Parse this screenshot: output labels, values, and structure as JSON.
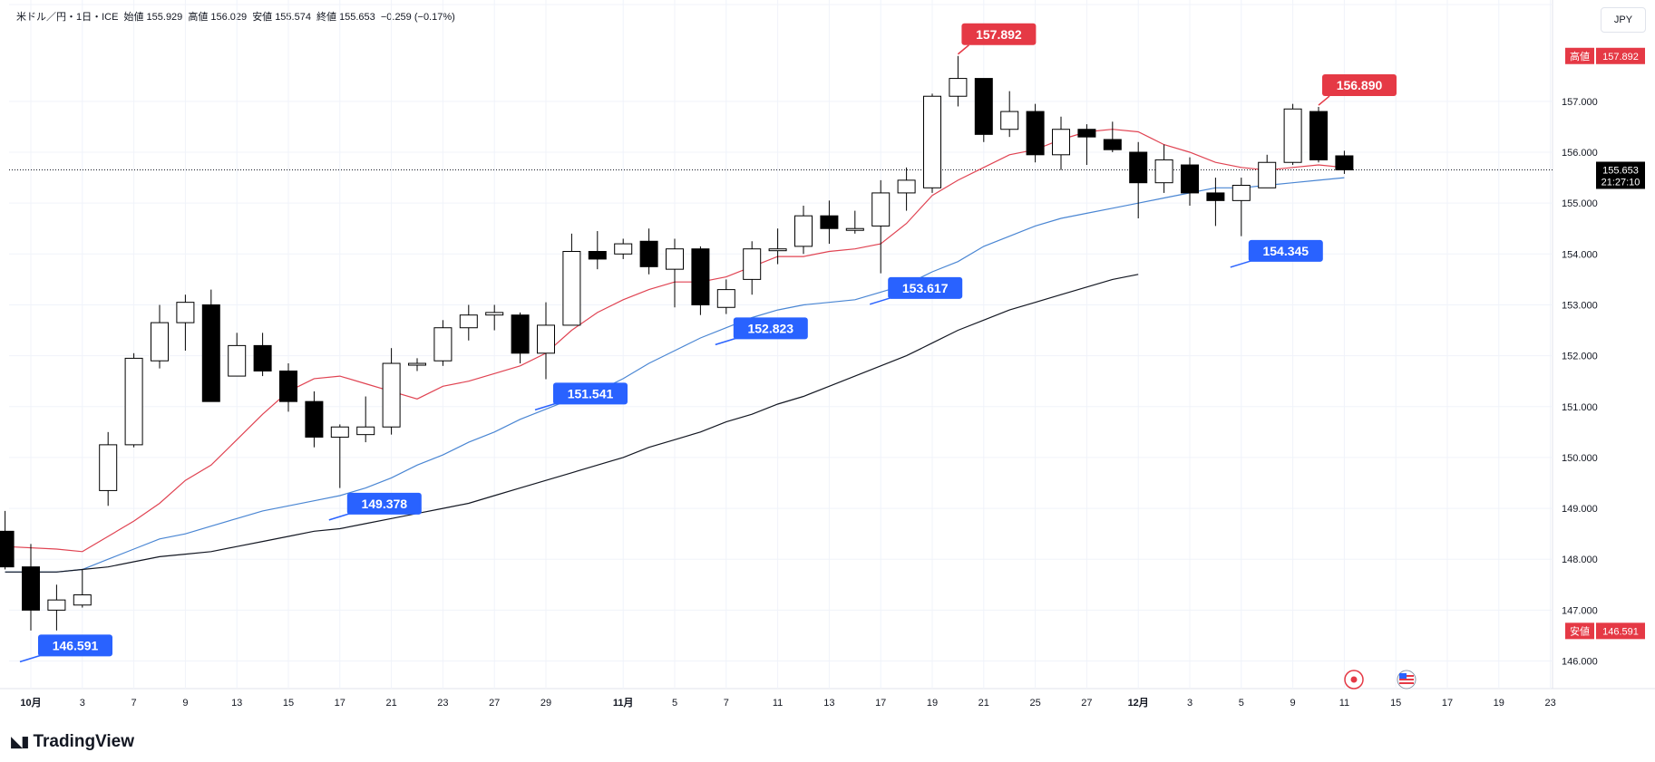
{
  "header": {
    "symbol": "米ドル／円・1日・ICE",
    "open_label": "始値",
    "open": "155.929",
    "high_label": "高値",
    "high": "156.029",
    "low_label": "安値",
    "low": "155.574",
    "close_label": "終値",
    "close": "155.653",
    "change": "−0.259 (−0.17%)"
  },
  "currency_button": "JPY",
  "brand": "TradingView",
  "colors": {
    "up_body": "#ffffff",
    "down_body": "#000000",
    "candle_outline": "#000000",
    "ma_short": "#e04352",
    "ma_mid": "#4a86d3",
    "ma_long": "#131722",
    "high_tag": "#e53945",
    "low_tag": "#2962ff",
    "price_tag": "#000000"
  },
  "chart_data": {
    "type": "candlestick",
    "y_axis": {
      "min": 145.6,
      "max": 158.6,
      "ticks": [
        "146.000",
        "147.000",
        "148.000",
        "149.000",
        "150.000",
        "151.000",
        "152.000",
        "153.000",
        "154.000",
        "155.000",
        "156.000",
        "157.000"
      ]
    },
    "x_axis": {
      "labels": [
        {
          "text": "10月",
          "slot": 0
        },
        {
          "text": "3",
          "slot": 2
        },
        {
          "text": "7",
          "slot": 4
        },
        {
          "text": "9",
          "slot": 6
        },
        {
          "text": "13",
          "slot": 8
        },
        {
          "text": "15",
          "slot": 10
        },
        {
          "text": "17",
          "slot": 12
        },
        {
          "text": "21",
          "slot": 14
        },
        {
          "text": "23",
          "slot": 16
        },
        {
          "text": "27",
          "slot": 18
        },
        {
          "text": "29",
          "slot": 20
        },
        {
          "text": "11月",
          "slot": 23
        },
        {
          "text": "5",
          "slot": 25
        },
        {
          "text": "7",
          "slot": 27
        },
        {
          "text": "11",
          "slot": 29
        },
        {
          "text": "13",
          "slot": 31
        },
        {
          "text": "17",
          "slot": 33
        },
        {
          "text": "19",
          "slot": 35
        },
        {
          "text": "21",
          "slot": 37
        },
        {
          "text": "25",
          "slot": 39
        },
        {
          "text": "27",
          "slot": 41
        },
        {
          "text": "12月",
          "slot": 43
        },
        {
          "text": "3",
          "slot": 45
        },
        {
          "text": "5",
          "slot": 47
        },
        {
          "text": "9",
          "slot": 49
        },
        {
          "text": "11",
          "slot": 51
        },
        {
          "text": "15",
          "slot": 53
        },
        {
          "text": "17",
          "slot": 55
        },
        {
          "text": "19",
          "slot": 57
        },
        {
          "text": "23",
          "slot": 59
        }
      ]
    },
    "candles": [
      {
        "slot": -1,
        "o": 148.55,
        "h": 148.95,
        "l": 147.8,
        "c": 147.85
      },
      {
        "slot": 0,
        "o": 147.85,
        "h": 148.3,
        "l": 146.6,
        "c": 147.0
      },
      {
        "slot": 1,
        "o": 147.0,
        "h": 147.5,
        "l": 146.6,
        "c": 147.2
      },
      {
        "slot": 2,
        "o": 147.1,
        "h": 147.8,
        "l": 147.05,
        "c": 147.3
      },
      {
        "slot": 3,
        "o": 149.35,
        "h": 150.5,
        "l": 149.05,
        "c": 150.25
      },
      {
        "slot": 4,
        "o": 150.25,
        "h": 152.05,
        "l": 150.2,
        "c": 151.95
      },
      {
        "slot": 5,
        "o": 151.9,
        "h": 153.0,
        "l": 151.75,
        "c": 152.65
      },
      {
        "slot": 6,
        "o": 152.65,
        "h": 153.2,
        "l": 152.1,
        "c": 153.05
      },
      {
        "slot": 7,
        "o": 153.0,
        "h": 153.3,
        "l": 151.1,
        "c": 151.1
      },
      {
        "slot": 8,
        "o": 151.6,
        "h": 152.45,
        "l": 151.6,
        "c": 152.2
      },
      {
        "slot": 9,
        "o": 152.2,
        "h": 152.45,
        "l": 151.6,
        "c": 151.7
      },
      {
        "slot": 10,
        "o": 151.7,
        "h": 151.85,
        "l": 150.9,
        "c": 151.1
      },
      {
        "slot": 11,
        "o": 151.1,
        "h": 151.3,
        "l": 150.2,
        "c": 150.4
      },
      {
        "slot": 12,
        "o": 150.4,
        "h": 150.65,
        "l": 149.4,
        "c": 150.6
      },
      {
        "slot": 13,
        "o": 150.45,
        "h": 151.2,
        "l": 150.3,
        "c": 150.6
      },
      {
        "slot": 14,
        "o": 150.6,
        "h": 152.15,
        "l": 150.45,
        "c": 151.85
      },
      {
        "slot": 15,
        "o": 151.85,
        "h": 151.95,
        "l": 151.7,
        "c": 151.85
      },
      {
        "slot": 16,
        "o": 151.9,
        "h": 152.7,
        "l": 151.8,
        "c": 152.55
      },
      {
        "slot": 17,
        "o": 152.55,
        "h": 153.0,
        "l": 152.3,
        "c": 152.8
      },
      {
        "slot": 18,
        "o": 152.8,
        "h": 153.0,
        "l": 152.5,
        "c": 152.85
      },
      {
        "slot": 19,
        "o": 152.8,
        "h": 152.85,
        "l": 151.85,
        "c": 152.05
      },
      {
        "slot": 20,
        "o": 152.05,
        "h": 153.05,
        "l": 151.54,
        "c": 152.6
      },
      {
        "slot": 21,
        "o": 152.6,
        "h": 154.4,
        "l": 152.6,
        "c": 154.05
      },
      {
        "slot": 22,
        "o": 154.05,
        "h": 154.45,
        "l": 153.7,
        "c": 153.9
      },
      {
        "slot": 23,
        "o": 154.0,
        "h": 154.3,
        "l": 153.9,
        "c": 154.2
      },
      {
        "slot": 24,
        "o": 154.25,
        "h": 154.5,
        "l": 153.6,
        "c": 153.75
      },
      {
        "slot": 25,
        "o": 153.7,
        "h": 154.3,
        "l": 152.95,
        "c": 154.1
      },
      {
        "slot": 26,
        "o": 154.1,
        "h": 154.15,
        "l": 152.8,
        "c": 153.0
      },
      {
        "slot": 27,
        "o": 152.95,
        "h": 153.5,
        "l": 152.82,
        "c": 153.3
      },
      {
        "slot": 28,
        "o": 153.5,
        "h": 154.25,
        "l": 153.2,
        "c": 154.1
      },
      {
        "slot": 29,
        "o": 154.1,
        "h": 154.5,
        "l": 153.8,
        "c": 154.1
      },
      {
        "slot": 30,
        "o": 154.15,
        "h": 154.95,
        "l": 154.0,
        "c": 154.75
      },
      {
        "slot": 31,
        "o": 154.75,
        "h": 155.05,
        "l": 154.2,
        "c": 154.5
      },
      {
        "slot": 32,
        "o": 154.5,
        "h": 154.85,
        "l": 154.4,
        "c": 154.5
      },
      {
        "slot": 33,
        "o": 154.55,
        "h": 155.45,
        "l": 153.62,
        "c": 155.2
      },
      {
        "slot": 34,
        "o": 155.2,
        "h": 155.7,
        "l": 154.85,
        "c": 155.45
      },
      {
        "slot": 35,
        "o": 155.3,
        "h": 157.15,
        "l": 155.2,
        "c": 157.1
      },
      {
        "slot": 36,
        "o": 157.1,
        "h": 157.892,
        "l": 156.9,
        "c": 157.45
      },
      {
        "slot": 37,
        "o": 157.45,
        "h": 157.45,
        "l": 156.2,
        "c": 156.35
      },
      {
        "slot": 38,
        "o": 156.45,
        "h": 157.2,
        "l": 156.3,
        "c": 156.8
      },
      {
        "slot": 39,
        "o": 156.8,
        "h": 156.95,
        "l": 155.8,
        "c": 155.95
      },
      {
        "slot": 40,
        "o": 155.95,
        "h": 156.7,
        "l": 155.65,
        "c": 156.45
      },
      {
        "slot": 41,
        "o": 156.45,
        "h": 156.55,
        "l": 155.75,
        "c": 156.3
      },
      {
        "slot": 42,
        "o": 156.25,
        "h": 156.6,
        "l": 156.0,
        "c": 156.05
      },
      {
        "slot": 43,
        "o": 156.0,
        "h": 156.2,
        "l": 154.7,
        "c": 155.4
      },
      {
        "slot": 44,
        "o": 155.4,
        "h": 156.15,
        "l": 155.2,
        "c": 155.85
      },
      {
        "slot": 45,
        "o": 155.75,
        "h": 155.9,
        "l": 154.95,
        "c": 155.2
      },
      {
        "slot": 46,
        "o": 155.2,
        "h": 155.5,
        "l": 154.55,
        "c": 155.05
      },
      {
        "slot": 47,
        "o": 155.05,
        "h": 155.5,
        "l": 154.35,
        "c": 155.35
      },
      {
        "slot": 48,
        "o": 155.3,
        "h": 155.95,
        "l": 155.3,
        "c": 155.8
      },
      {
        "slot": 49,
        "o": 155.8,
        "h": 156.95,
        "l": 155.75,
        "c": 156.85
      },
      {
        "slot": 50,
        "o": 156.8,
        "h": 156.89,
        "l": 155.8,
        "c": 155.85
      },
      {
        "slot": 51,
        "o": 155.929,
        "h": 156.029,
        "l": 155.574,
        "c": 155.653
      }
    ],
    "moving_averages": [
      {
        "color": "#e04352",
        "points": [
          [
            -1,
            148.25
          ],
          [
            1,
            148.2
          ],
          [
            2,
            148.15
          ],
          [
            3,
            148.45
          ],
          [
            4,
            148.75
          ],
          [
            5,
            149.1
          ],
          [
            6,
            149.55
          ],
          [
            7,
            149.85
          ],
          [
            8,
            150.35
          ],
          [
            9,
            150.85
          ],
          [
            10,
            151.3
          ],
          [
            11,
            151.55
          ],
          [
            12,
            151.6
          ],
          [
            13,
            151.45
          ],
          [
            14,
            151.3
          ],
          [
            15,
            151.15
          ],
          [
            16,
            151.4
          ],
          [
            17,
            151.5
          ],
          [
            18,
            151.65
          ],
          [
            19,
            151.8
          ],
          [
            20,
            152.05
          ],
          [
            21,
            152.5
          ],
          [
            22,
            152.85
          ],
          [
            23,
            153.1
          ],
          [
            24,
            153.3
          ],
          [
            25,
            153.45
          ],
          [
            26,
            153.45
          ],
          [
            27,
            153.55
          ],
          [
            28,
            153.75
          ],
          [
            29,
            153.95
          ],
          [
            30,
            153.95
          ],
          [
            31,
            154.05
          ],
          [
            32,
            154.1
          ],
          [
            33,
            154.2
          ],
          [
            34,
            154.6
          ],
          [
            35,
            155.15
          ],
          [
            36,
            155.45
          ],
          [
            37,
            155.7
          ],
          [
            38,
            155.95
          ],
          [
            39,
            156.05
          ],
          [
            40,
            156.25
          ],
          [
            41,
            156.4
          ],
          [
            42,
            156.45
          ],
          [
            43,
            156.4
          ],
          [
            44,
            156.15
          ],
          [
            45,
            156.0
          ],
          [
            46,
            155.8
          ],
          [
            47,
            155.7
          ],
          [
            48,
            155.65
          ],
          [
            49,
            155.7
          ],
          [
            50,
            155.75
          ],
          [
            51,
            155.7
          ]
        ]
      },
      {
        "color": "#4a86d3",
        "points": [
          [
            -1,
            147.75
          ],
          [
            1,
            147.75
          ],
          [
            2,
            147.8
          ],
          [
            3,
            148.0
          ],
          [
            4,
            148.2
          ],
          [
            5,
            148.4
          ],
          [
            6,
            148.5
          ],
          [
            7,
            148.65
          ],
          [
            8,
            148.8
          ],
          [
            9,
            148.95
          ],
          [
            10,
            149.05
          ],
          [
            11,
            149.15
          ],
          [
            12,
            149.25
          ],
          [
            13,
            149.4
          ],
          [
            14,
            149.6
          ],
          [
            15,
            149.85
          ],
          [
            16,
            150.05
          ],
          [
            17,
            150.3
          ],
          [
            18,
            150.5
          ],
          [
            19,
            150.75
          ],
          [
            20,
            150.95
          ],
          [
            21,
            151.15
          ],
          [
            22,
            151.3
          ],
          [
            23,
            151.55
          ],
          [
            24,
            151.85
          ],
          [
            25,
            152.1
          ],
          [
            26,
            152.35
          ],
          [
            27,
            152.55
          ],
          [
            28,
            152.75
          ],
          [
            29,
            152.9
          ],
          [
            30,
            153.0
          ],
          [
            31,
            153.05
          ],
          [
            32,
            153.1
          ],
          [
            33,
            153.25
          ],
          [
            34,
            153.4
          ],
          [
            35,
            153.65
          ],
          [
            36,
            153.85
          ],
          [
            37,
            154.15
          ],
          [
            38,
            154.35
          ],
          [
            39,
            154.55
          ],
          [
            40,
            154.7
          ],
          [
            41,
            154.8
          ],
          [
            42,
            154.9
          ],
          [
            43,
            155.0
          ],
          [
            44,
            155.1
          ],
          [
            45,
            155.2
          ],
          [
            46,
            155.3
          ],
          [
            47,
            155.3
          ],
          [
            48,
            155.35
          ],
          [
            49,
            155.4
          ],
          [
            50,
            155.45
          ],
          [
            51,
            155.5
          ]
        ]
      },
      {
        "color": "#131722",
        "points": [
          [
            -1,
            147.75
          ],
          [
            1,
            147.75
          ],
          [
            2,
            147.8
          ],
          [
            3,
            147.85
          ],
          [
            4,
            147.95
          ],
          [
            5,
            148.05
          ],
          [
            6,
            148.1
          ],
          [
            7,
            148.15
          ],
          [
            8,
            148.25
          ],
          [
            9,
            148.35
          ],
          [
            10,
            148.45
          ],
          [
            11,
            148.55
          ],
          [
            12,
            148.6
          ],
          [
            13,
            148.7
          ],
          [
            14,
            148.8
          ],
          [
            15,
            148.9
          ],
          [
            16,
            149.0
          ],
          [
            17,
            149.1
          ],
          [
            18,
            149.25
          ],
          [
            19,
            149.4
          ],
          [
            20,
            149.55
          ],
          [
            21,
            149.7
          ],
          [
            22,
            149.85
          ],
          [
            23,
            150.0
          ],
          [
            24,
            150.2
          ],
          [
            25,
            150.35
          ],
          [
            26,
            150.5
          ],
          [
            27,
            150.7
          ],
          [
            28,
            150.85
          ],
          [
            29,
            151.05
          ],
          [
            30,
            151.2
          ],
          [
            31,
            151.4
          ],
          [
            32,
            151.6
          ],
          [
            33,
            151.8
          ],
          [
            34,
            152.0
          ],
          [
            35,
            152.25
          ],
          [
            36,
            152.5
          ],
          [
            37,
            152.7
          ],
          [
            38,
            152.9
          ],
          [
            39,
            153.05
          ],
          [
            40,
            153.2
          ],
          [
            41,
            153.35
          ],
          [
            42,
            153.5
          ],
          [
            43,
            153.6
          ]
        ]
      }
    ],
    "callouts": [
      {
        "text": "157.892",
        "slot": 36,
        "price": 157.892,
        "color": "#e53945",
        "side": "above"
      },
      {
        "text": "156.890",
        "slot": 50,
        "price": 156.89,
        "color": "#e53945",
        "side": "above"
      },
      {
        "text": "153.617",
        "slot": 33,
        "price": 153.617,
        "color": "#2962ff",
        "side": "below"
      },
      {
        "text": "152.823",
        "slot": 27,
        "price": 152.823,
        "color": "#2962ff",
        "side": "below"
      },
      {
        "text": "151.541",
        "slot": 20,
        "price": 151.541,
        "color": "#2962ff",
        "side": "below"
      },
      {
        "text": "149.378",
        "slot": 12,
        "price": 149.378,
        "color": "#2962ff",
        "side": "below"
      },
      {
        "text": "154.345",
        "slot": 47,
        "price": 154.345,
        "color": "#2962ff",
        "side": "below"
      },
      {
        "text": "146.591",
        "slot": 0,
        "price": 146.591,
        "color": "#2962ff",
        "side": "below"
      }
    ],
    "last_price": {
      "value": "155.653",
      "countdown": "21:27:10",
      "price": 155.653
    },
    "high_tag": {
      "label": "高値",
      "value": "157.892",
      "price": 157.892
    },
    "low_tag": {
      "label": "安値",
      "value": "146.591",
      "price": 146.591
    }
  }
}
